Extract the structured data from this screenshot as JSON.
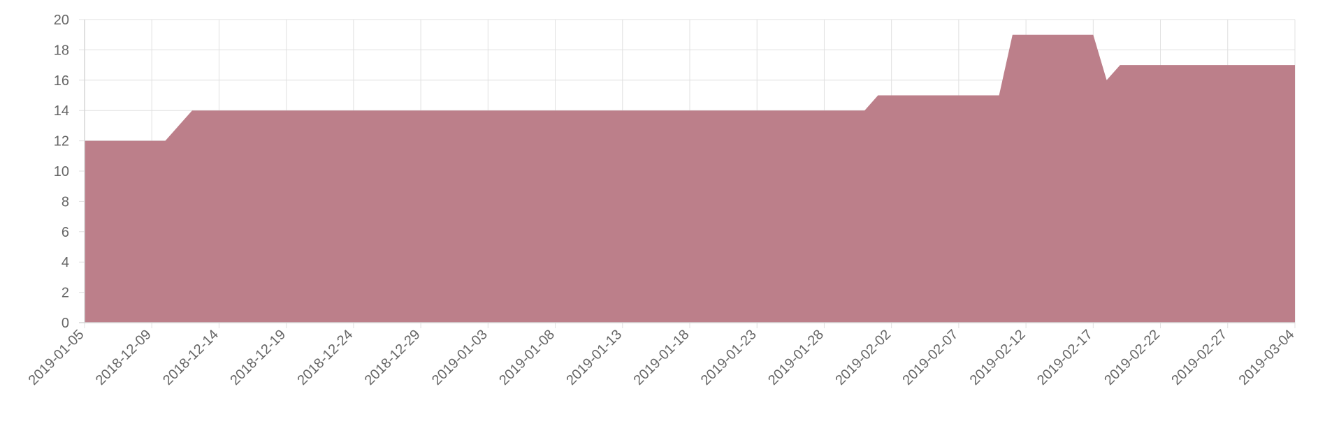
{
  "chart_data": {
    "type": "area",
    "title": "",
    "xlabel": "",
    "ylabel": "",
    "ylim": [
      0,
      20
    ],
    "y_ticks": [
      "0",
      "2",
      "4",
      "6",
      "8",
      "10",
      "12",
      "14",
      "16",
      "18",
      "20"
    ],
    "x_ticks": [
      "2019-01-05",
      "2018-12-09",
      "2018-12-14",
      "2018-12-19",
      "2018-12-24",
      "2018-12-29",
      "2019-01-03",
      "2019-01-08",
      "2019-01-13",
      "2019-01-18",
      "2019-01-23",
      "2019-01-28",
      "2019-02-02",
      "2019-02-07",
      "2019-02-12",
      "2019-02-17",
      "2019-02-22",
      "2019-02-27",
      "2019-03-04"
    ],
    "grid": true,
    "series": [
      {
        "color": "#bc7f8a",
        "points": [
          {
            "x": "2019-01-05",
            "y": 12
          },
          {
            "x": "2018-12-10",
            "y": 12
          },
          {
            "x": "2018-12-11",
            "y": 13
          },
          {
            "x": "2018-12-12",
            "y": 14
          },
          {
            "x": "2019-01-31",
            "y": 14
          },
          {
            "x": "2019-02-01",
            "y": 15
          },
          {
            "x": "2019-02-10",
            "y": 15
          },
          {
            "x": "2019-02-11",
            "y": 19
          },
          {
            "x": "2019-02-17",
            "y": 19
          },
          {
            "x": "2019-02-18",
            "y": 16
          },
          {
            "x": "2019-02-19",
            "y": 17
          },
          {
            "x": "2019-03-04",
            "y": 17
          }
        ]
      }
    ]
  }
}
